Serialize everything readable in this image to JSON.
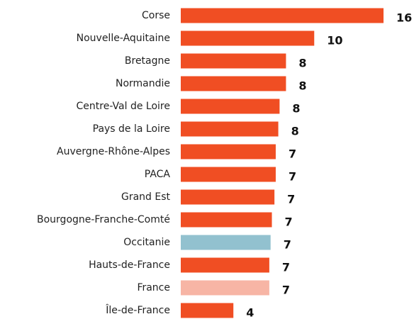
{
  "chart_data": {
    "type": "bar",
    "categories": [
      "Corse",
      "Nouvelle-Aquitaine",
      "Bretagne",
      "Normandie",
      "Centre-Val de Loire",
      "Pays de la Loire",
      "Auvergne-Rhône-Alpes",
      "PACA",
      "Grand Est",
      "Bourgogne-Franche-Comté",
      "Occitanie",
      "Hauts-de-France",
      "France",
      "Île-de-France"
    ],
    "values": [
      15.8,
      10.4,
      8.2,
      8.2,
      7.7,
      7.6,
      7.4,
      7.4,
      7.3,
      7.1,
      7.0,
      6.9,
      6.9,
      4.1
    ],
    "value_labels": [
      "16",
      "10",
      "8",
      "8",
      "8",
      "8",
      "7",
      "7",
      "7",
      "7",
      "7",
      "7",
      "7",
      "4"
    ],
    "colors": [
      "#f04e23",
      "#f04e23",
      "#f04e23",
      "#f04e23",
      "#f04e23",
      "#f04e23",
      "#f04e23",
      "#f04e23",
      "#f04e23",
      "#f04e23",
      "#92c1cf",
      "#f04e23",
      "#f7b5a5",
      "#f04e23"
    ]
  }
}
